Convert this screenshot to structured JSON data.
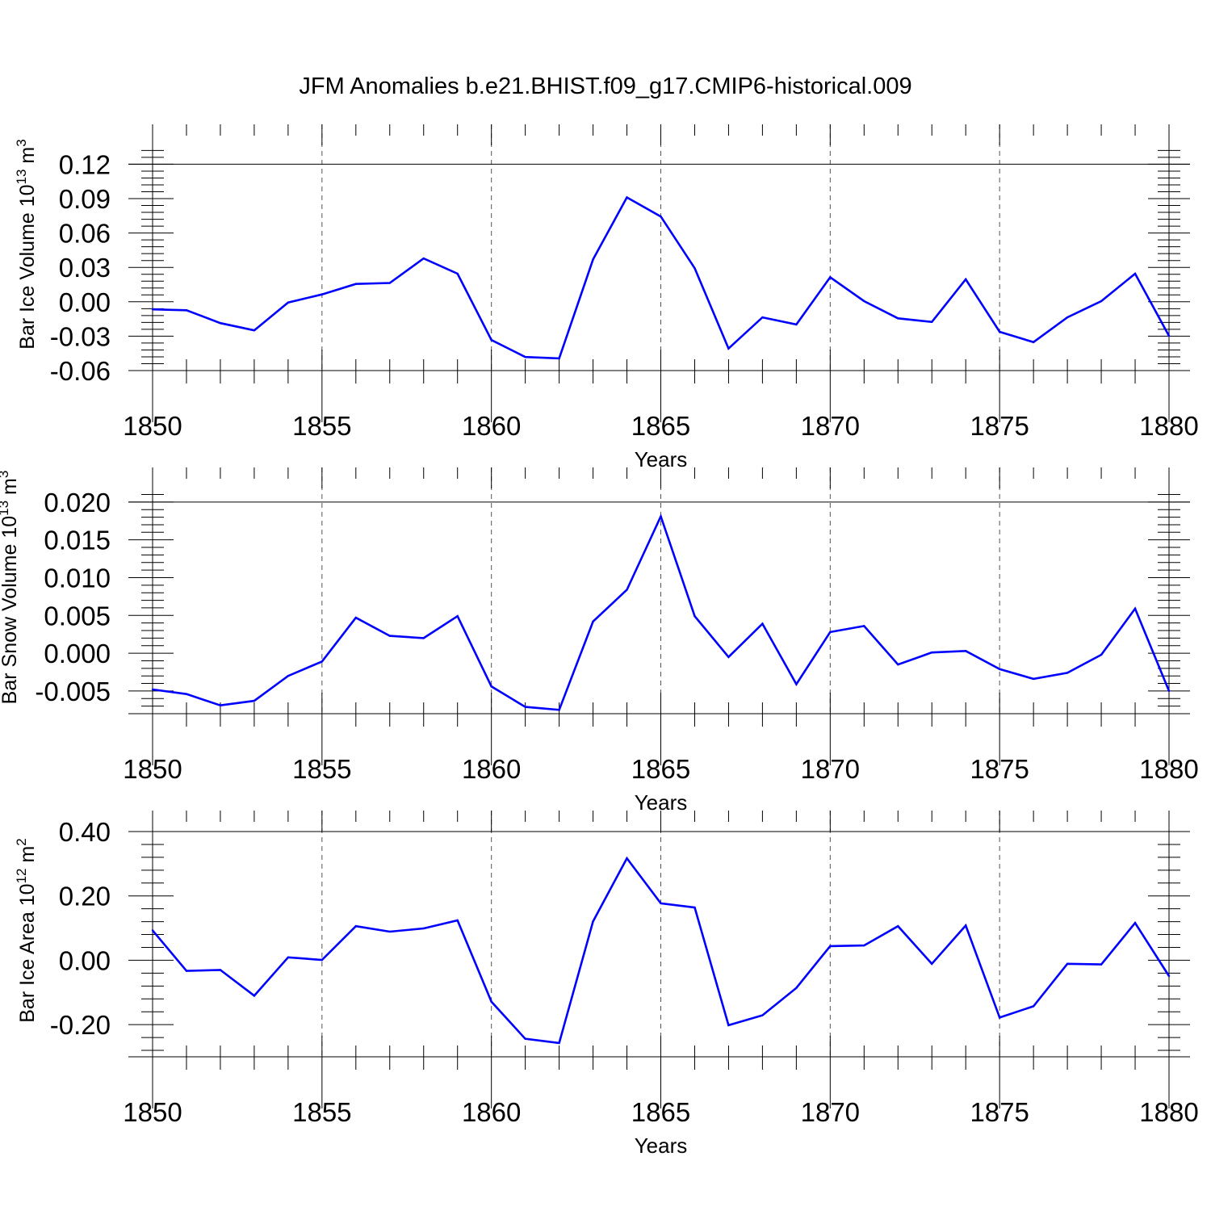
{
  "title": "JFM Anomalies b.e21.BHIST.f09_g17.CMIP6-historical.009",
  "chart_data": [
    {
      "type": "line",
      "ylabel_text": "Bar Ice Volume 10",
      "ylabel_exp": "13",
      "ylabel_unit": " m",
      "ylabel_unit_exp": "3",
      "xlabel": "Years",
      "xlim": [
        1850,
        1880
      ],
      "ylim": [
        -0.06,
        0.1365
      ],
      "yticks": [
        -0.06,
        -0.03,
        0.0,
        0.03,
        0.06,
        0.09,
        0.12
      ],
      "ytick_labels": [
        "-0.06",
        "-0.03",
        "0.00",
        "0.03",
        "0.06",
        "0.09",
        "0.12"
      ],
      "yminor_step": 0.006,
      "xticks": [
        1850,
        1855,
        1860,
        1865,
        1870,
        1875,
        1880
      ],
      "xtick_labels": [
        "1850",
        "1855",
        "1860",
        "1865",
        "1870",
        "1875",
        "1880"
      ],
      "line_color": "#0000ff",
      "x": [
        1850,
        1851,
        1852,
        1853,
        1854,
        1855,
        1856,
        1857,
        1858,
        1859,
        1860,
        1861,
        1862,
        1863,
        1864,
        1865,
        1866,
        1867,
        1868,
        1869,
        1870,
        1871,
        1872,
        1873,
        1874,
        1875,
        1876,
        1877,
        1878,
        1879,
        1880
      ],
      "values": [
        -0.0066,
        -0.0074,
        -0.0186,
        -0.0249,
        -0.0006,
        0.0064,
        0.0156,
        0.0164,
        0.0378,
        0.0245,
        -0.0333,
        -0.0482,
        -0.0494,
        0.037,
        0.0911,
        0.0744,
        0.0293,
        -0.0408,
        -0.0136,
        -0.0198,
        0.0214,
        0.0006,
        -0.0144,
        -0.0176,
        0.0196,
        -0.0262,
        -0.0352,
        -0.0136,
        0.0006,
        0.0245,
        -0.0298
      ]
    },
    {
      "type": "line",
      "ylabel_text": "Bar Snow Volume 10",
      "ylabel_exp": "13",
      "ylabel_unit": " m",
      "ylabel_unit_exp": "3",
      "xlabel": "Years",
      "xlim": [
        1850,
        1880
      ],
      "ylim": [
        -0.008,
        0.0218
      ],
      "yticks": [
        -0.005,
        0.0,
        0.005,
        0.01,
        0.015,
        0.02
      ],
      "ytick_labels": [
        "-0.005",
        "0.000",
        "0.005",
        "0.010",
        "0.015",
        "0.020"
      ],
      "yminor_step": 0.001,
      "xticks": [
        1850,
        1855,
        1860,
        1865,
        1870,
        1875,
        1880
      ],
      "xtick_labels": [
        "1850",
        "1855",
        "1860",
        "1865",
        "1870",
        "1875",
        "1880"
      ],
      "line_color": "#0000ff",
      "x": [
        1850,
        1851,
        1852,
        1853,
        1854,
        1855,
        1856,
        1857,
        1858,
        1859,
        1860,
        1861,
        1862,
        1863,
        1864,
        1865,
        1866,
        1867,
        1868,
        1869,
        1870,
        1871,
        1872,
        1873,
        1874,
        1875,
        1876,
        1877,
        1878,
        1879,
        1880
      ],
      "values": [
        -0.0048,
        -0.0054,
        -0.0069,
        -0.0063,
        -0.003,
        -0.0011,
        0.0047,
        0.0023,
        0.002,
        0.0049,
        -0.0044,
        -0.0071,
        -0.0075,
        0.0042,
        0.0084,
        0.0181,
        0.0049,
        -0.0005,
        0.0039,
        -0.0041,
        0.0028,
        0.0036,
        -0.0015,
        0.0001,
        0.0003,
        -0.0021,
        -0.0034,
        -0.0026,
        -0.0002,
        0.0059,
        -0.005
      ]
    },
    {
      "type": "line",
      "ylabel_text": "Bar Ice Area 10",
      "ylabel_exp": "12",
      "ylabel_unit": " m",
      "ylabel_unit_exp": "2",
      "xlabel": "Years",
      "xlim": [
        1850,
        1880
      ],
      "ylim": [
        -0.3,
        0.4
      ],
      "yticks": [
        -0.2,
        0.0,
        0.2,
        0.4
      ],
      "ytick_labels": [
        "-0.20",
        "0.00",
        "0.20",
        "0.40"
      ],
      "yminor_step": 0.04,
      "xticks": [
        1850,
        1855,
        1860,
        1865,
        1870,
        1875,
        1880
      ],
      "xtick_labels": [
        "1850",
        "1855",
        "1860",
        "1865",
        "1870",
        "1875",
        "1880"
      ],
      "line_color": "#0000ff",
      "x": [
        1850,
        1851,
        1852,
        1853,
        1854,
        1855,
        1856,
        1857,
        1858,
        1859,
        1860,
        1861,
        1862,
        1863,
        1864,
        1865,
        1866,
        1867,
        1868,
        1869,
        1870,
        1871,
        1872,
        1873,
        1874,
        1875,
        1876,
        1877,
        1878,
        1879,
        1880
      ],
      "values": [
        0.093,
        -0.033,
        -0.03,
        -0.11,
        0.009,
        0.001,
        0.106,
        0.089,
        0.099,
        0.124,
        -0.129,
        -0.244,
        -0.257,
        0.121,
        0.317,
        0.177,
        0.164,
        -0.202,
        -0.171,
        -0.086,
        0.044,
        0.046,
        0.106,
        -0.011,
        0.108,
        -0.178,
        -0.143,
        -0.011,
        -0.013,
        0.116,
        -0.049
      ]
    }
  ]
}
